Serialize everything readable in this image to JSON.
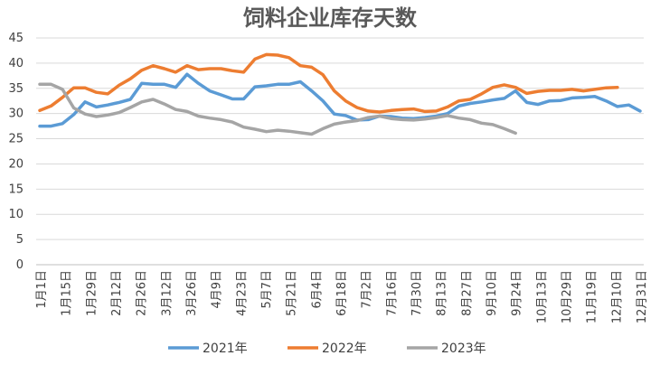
{
  "chart_data": {
    "type": "line",
    "title": "饲料企业库存天数",
    "xlabel": "",
    "ylabel": "",
    "ylim": [
      0,
      45
    ],
    "yticks": [
      0,
      5,
      10,
      15,
      20,
      25,
      30,
      35,
      40,
      45
    ],
    "grid": true,
    "legend_position": "bottom",
    "x_tick_labels": [
      "1月1日",
      "1月15日",
      "1月29日",
      "2月12日",
      "2月26日",
      "3月12日",
      "3月26日",
      "4月9日",
      "4月23日",
      "5月7日",
      "5月21日",
      "6月4日",
      "6月18日",
      "7月2日",
      "7月16日",
      "7月30日",
      "8月13日",
      "8月27日",
      "9月10日",
      "9月24日",
      "10月13日",
      "10月29日",
      "11月19日",
      "12月10日",
      "12月31日"
    ],
    "series": [
      {
        "name": "2021年",
        "color": "#5b9bd5",
        "values": [
          27.5,
          27.5,
          28,
          29.8,
          32.3,
          31.3,
          31.7,
          32.2,
          32.8,
          36,
          35.8,
          35.8,
          35.2,
          37.8,
          36,
          34.5,
          33.7,
          32.9,
          32.9,
          35.3,
          35.5,
          35.8,
          35.8,
          36.3,
          34.5,
          32.5,
          29.9,
          29.6,
          28.7,
          28.8,
          29.5,
          29.4,
          29.1,
          29,
          29.2,
          29.5,
          30,
          31.5,
          32,
          32.3,
          32.7,
          33,
          34.5,
          32.2,
          31.8,
          32.5,
          32.6,
          33.1,
          33.2,
          33.4,
          32.5,
          31.4,
          31.7,
          30.5
        ]
      },
      {
        "name": "2022年",
        "color": "#ed7d31",
        "values": [
          30.6,
          31.5,
          33.2,
          35.1,
          35.1,
          34.2,
          33.9,
          35.6,
          36.9,
          38.6,
          39.5,
          38.9,
          38.2,
          39.5,
          38.7,
          38.9,
          38.9,
          38.5,
          38.2,
          40.8,
          41.7,
          41.6,
          41.1,
          39.5,
          39.2,
          37.7,
          34.5,
          32.5,
          31.2,
          30.5,
          30.3,
          30.6,
          30.8,
          30.9,
          30.4,
          30.5,
          31.3,
          32.5,
          32.8,
          33.9,
          35.2,
          35.7,
          35.2,
          34,
          34.4,
          34.6,
          34.6,
          34.8,
          34.5,
          34.8,
          35.1,
          35.2
        ]
      },
      {
        "name": "2023年",
        "color": "#a5a5a5",
        "values": [
          35.8,
          35.8,
          34.8,
          31.1,
          29.9,
          29.4,
          29.7,
          30.2,
          31.2,
          32.3,
          32.8,
          31.9,
          30.8,
          30.4,
          29.5,
          29.1,
          28.8,
          28.3,
          27.3,
          26.9,
          26.4,
          26.7,
          26.5,
          26.2,
          25.9,
          27,
          27.9,
          28.3,
          28.6,
          29.2,
          29.5,
          29,
          28.8,
          28.7,
          28.9,
          29.2,
          29.6,
          29.1,
          28.8,
          28.1,
          27.8,
          27,
          26.1
        ]
      }
    ]
  }
}
